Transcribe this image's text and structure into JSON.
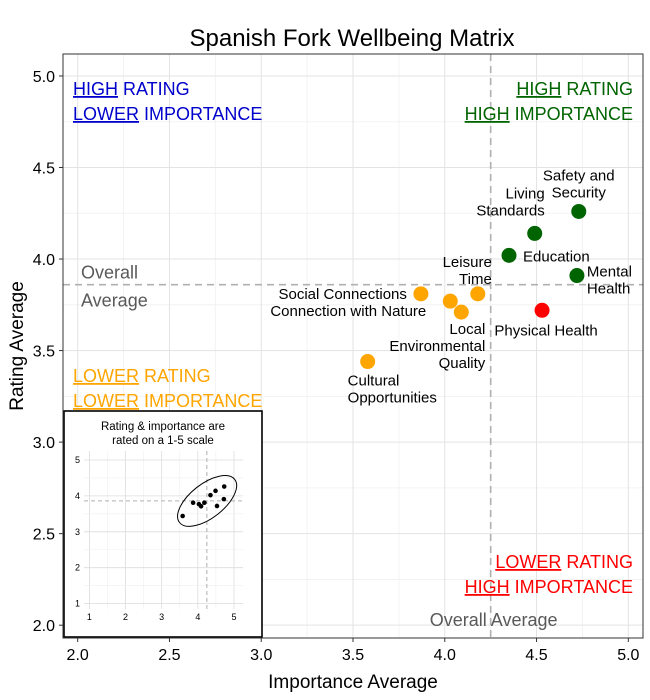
{
  "chart_data": {
    "type": "scatter",
    "title": "Spanish Fork Wellbeing Matrix",
    "xlabel": "Importance Average",
    "ylabel": "Rating Average",
    "xlim": [
      1.92,
      5.08
    ],
    "ylim": [
      1.93,
      5.12
    ],
    "x_ticks": [
      "2.0",
      "2.5",
      "3.0",
      "3.5",
      "4.0",
      "4.5",
      "5.0"
    ],
    "y_ticks": [
      "2.0",
      "2.5",
      "3.0",
      "3.5",
      "4.0",
      "4.5",
      "5.0"
    ],
    "grid": true,
    "reference_lines": {
      "x": 4.25,
      "y": 3.86,
      "x_label": "Overall Average",
      "y_label_line1": "Overall",
      "y_label_line2": "Average"
    },
    "colors": {
      "high_high": "#006400",
      "high_low": "#0000cd",
      "low_low": "#ffa500",
      "low_high": "#ff0000",
      "ref_line": "#b0b0b0",
      "ref_text": "#595959"
    },
    "quadrants": {
      "high_low": {
        "line1_u": "HIGH",
        "line1_rest": " RATING",
        "line2_u": "LOWER",
        "line2_rest": " IMPORTANCE"
      },
      "high_high": {
        "line1_u": "HIGH",
        "line1_rest": " RATING",
        "line2_u": "HIGH",
        "line2_rest": " IMPORTANCE"
      },
      "low_low": {
        "line1_u": "LOWER",
        "line1_rest": " RATING",
        "line2_u": "LOWER",
        "line2_rest": " IMPORTANCE"
      },
      "low_high": {
        "line1_u": "LOWER",
        "line1_rest": " RATING",
        "line2_u": "HIGH",
        "line2_rest": " IMPORTANCE"
      }
    },
    "points": [
      {
        "label": "Safety and\nSecurity",
        "x": 4.73,
        "y": 4.26,
        "color": "#006400",
        "anchor": "middle",
        "dx": 0,
        "dy": -36
      },
      {
        "label": "Living\nStandards",
        "x": 4.49,
        "y": 4.14,
        "color": "#006400",
        "anchor": "end",
        "dx": 10,
        "dy": -40
      },
      {
        "label": "Education",
        "x": 4.35,
        "y": 4.02,
        "color": "#006400",
        "anchor": "start",
        "dx": 14,
        "dy": 1
      },
      {
        "label": "Mental\nHealth",
        "x": 4.72,
        "y": 3.91,
        "color": "#006400",
        "anchor": "start",
        "dx": 10,
        "dy": -4
      },
      {
        "label": "Physical Health",
        "x": 4.53,
        "y": 3.72,
        "color": "#ff0000",
        "anchor": "middle",
        "dx": 4,
        "dy": 20
      },
      {
        "label": "Leisure\nTime",
        "x": 4.18,
        "y": 3.81,
        "color": "#ffa500",
        "anchor": "end",
        "dx": 14,
        "dy": -32
      },
      {
        "label": "Social Connections",
        "x": 3.87,
        "y": 3.81,
        "color": "#ffa500",
        "anchor": "end",
        "dx": -14,
        "dy": 0
      },
      {
        "label": "Connection with Nature",
        "x": 4.03,
        "y": 3.77,
        "color": "#ffa500",
        "anchor": "end",
        "dx": -24,
        "dy": 10
      },
      {
        "label": "Local\nEnvironmental\nQuality",
        "x": 4.09,
        "y": 3.71,
        "color": "#ffa500",
        "anchor": "end",
        "dx": 24,
        "dy": 17
      },
      {
        "label": "Cultural\nOpportunities",
        "x": 3.58,
        "y": 3.44,
        "color": "#ffa500",
        "anchor": "start",
        "dx": -20,
        "dy": 19
      }
    ],
    "inset": {
      "title_line1": "Rating & importance are",
      "title_line2": "rated on a 1-5 scale",
      "x_ticks": [
        "1",
        "2",
        "3",
        "4",
        "5"
      ],
      "y_ticks": [
        "1",
        "2",
        "3",
        "4",
        "5"
      ],
      "ref_x": 4.25,
      "ref_y": 3.86
    }
  }
}
